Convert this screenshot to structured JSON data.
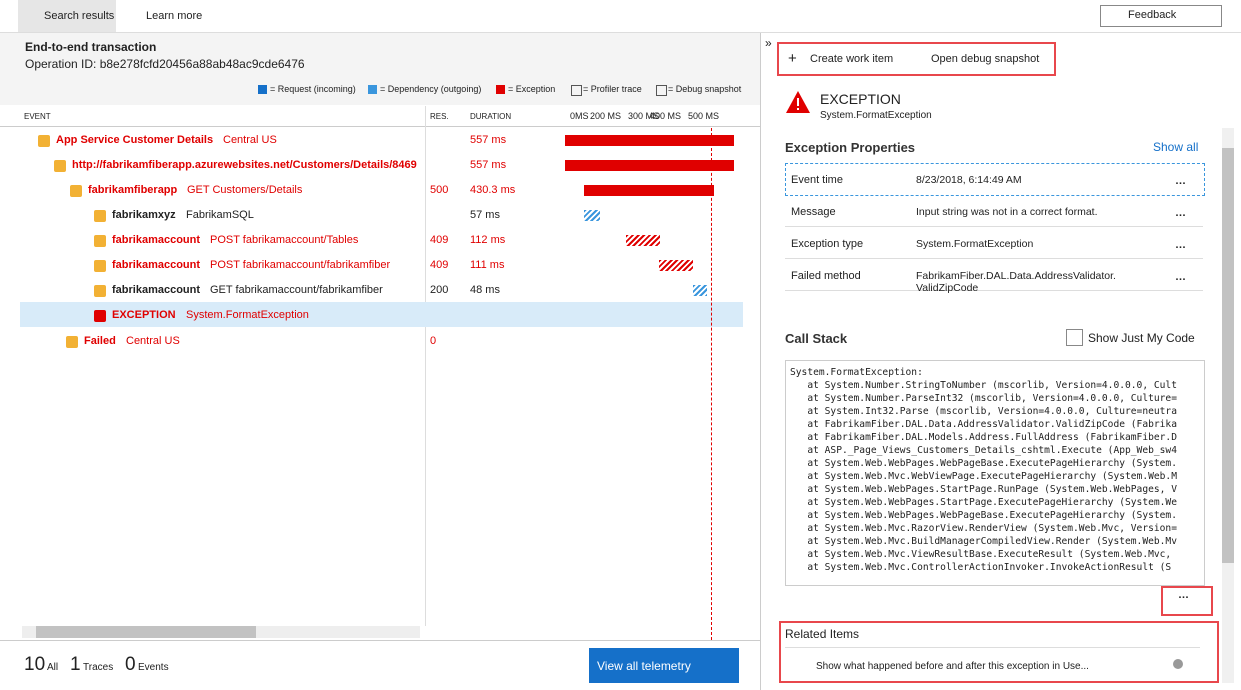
{
  "top_bar": {
    "tabs": [
      "Search results",
      "Learn more"
    ],
    "feedback": "Feedback"
  },
  "transaction": {
    "title": "End-to-end transaction",
    "operation_id": "Operation ID: b8e278fcfd20456a88ab48ac9cde6476"
  },
  "legend": [
    "= Request (incoming)",
    "= Dependency (outgoing)",
    "= Exception",
    "= Profiler trace",
    "= Debug snapshot"
  ],
  "table": {
    "headers": [
      "EVENT",
      "RES.",
      "DURATION"
    ],
    "timeline_ticks": [
      "0MS",
      "200 MS",
      "300 MS",
      "400 MS",
      "500 MS"
    ],
    "rows": [
      {
        "name": "App Service Customer Details",
        "detail": "Central US",
        "duration": "557 ms"
      },
      {
        "name": "http://fabrikamfiberapp.azurewebsites.net/Customers/Details/8469",
        "duration": "557 ms"
      },
      {
        "name": "fabrikamfiberapp",
        "detail": "GET Customers/Details",
        "result": "500",
        "duration": "430.3 ms"
      },
      {
        "name": "fabrikamxyz",
        "detail": "FabrikamSQL",
        "duration": "57 ms"
      },
      {
        "name": "fabrikamaccount",
        "detail": "POST fabrikamaccount/Tables",
        "result": "409",
        "duration": "112 ms"
      },
      {
        "name": "fabrikamaccount",
        "detail": "POST fabrikamaccount/fabrikamfiber",
        "result": "409",
        "duration": "111 ms"
      },
      {
        "name": "fabrikamaccount",
        "detail": "GET fabrikamaccount/fabrikamfiber",
        "result": "200",
        "duration": "48 ms"
      },
      {
        "name": "EXCEPTION",
        "detail": "System.FormatException"
      },
      {
        "name": "Failed",
        "detail": "Central US",
        "result": "0"
      }
    ]
  },
  "footer": {
    "counts": [
      [
        "10",
        "All"
      ],
      [
        "1",
        "Traces"
      ],
      [
        "0",
        "Events"
      ]
    ],
    "button": "View all telemetry"
  },
  "details": {
    "actions": [
      "Create work item",
      "Open debug snapshot"
    ],
    "exception_title": "EXCEPTION",
    "exception_type": "System.FormatException",
    "properties_heading": "Exception Properties",
    "show_all": "Show all",
    "properties": [
      [
        "Event time",
        "8/23/2018, 6:14:49 AM"
      ],
      [
        "Message",
        "Input string was not in a correct format."
      ],
      [
        "Exception type",
        "System.FormatException"
      ],
      [
        "Failed method",
        "FabrikamFiber.DAL.Data.AddressValidator.ValidZipCode"
      ]
    ],
    "call_stack_heading": "Call Stack",
    "just_my_code": "Show Just My Code",
    "call_stack": [
      "System.FormatException:",
      "   at System.Number.StringToNumber (mscorlib, Version=4.0.0.0, Cult",
      "   at System.Number.ParseInt32 (mscorlib, Version=4.0.0.0, Culture=",
      "   at System.Int32.Parse (mscorlib, Version=4.0.0.0, Culture=neutra",
      "   at FabrikamFiber.DAL.Data.AddressValidator.ValidZipCode (Fabrika",
      "   at FabrikamFiber.DAL.Models.Address.FullAddress (FabrikamFiber.D",
      "   at ASP._Page_Views_Customers_Details_cshtml.Execute (App_Web_sw4",
      "   at System.Web.WebPages.WebPageBase.ExecutePageHierarchy (System.",
      "   at System.Web.Mvc.WebViewPage.ExecutePageHierarchy (System.Web.M",
      "   at System.Web.WebPages.StartPage.RunPage (System.Web.WebPages, V",
      "   at System.Web.WebPages.StartPage.ExecutePageHierarchy (System.We",
      "   at System.Web.WebPages.WebPageBase.ExecutePageHierarchy (System.",
      "   at System.Web.Mvc.RazorView.RenderView (System.Web.Mvc, Version=",
      "   at System.Web.Mvc.BuildManagerCompiledView.Render (System.Web.Mv",
      "   at System.Web.Mvc.ViewResultBase.ExecuteResult (System.Web.Mvc, ",
      "   at System.Web.Mvc.ControllerActionInvoker.InvokeActionResult (S"
    ],
    "related_heading": "Related Items",
    "related_items": [
      "Show what happened before and after this exception in Use..."
    ]
  }
}
